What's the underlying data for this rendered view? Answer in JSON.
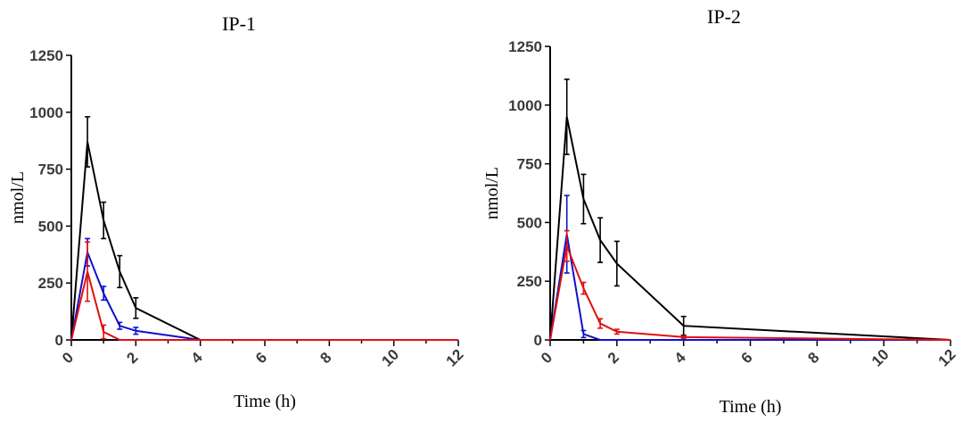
{
  "chart_data": [
    {
      "type": "line",
      "title": "IP-1",
      "xlabel": "Time (h)",
      "ylabel": "nmol/L",
      "xlim": [
        0,
        12
      ],
      "ylim": [
        0,
        1250
      ],
      "xticks": [
        0,
        2,
        4,
        6,
        8,
        10,
        12
      ],
      "yticks": [
        0,
        250,
        500,
        750,
        1000,
        1250
      ],
      "grid": false,
      "series": [
        {
          "color": "#000000",
          "x": [
            0,
            0.5,
            1,
            1.5,
            2,
            4,
            12
          ],
          "y": [
            0,
            870,
            525,
            300,
            140,
            0,
            0
          ],
          "err": [
            0,
            110,
            80,
            70,
            45,
            0,
            0
          ]
        },
        {
          "color": "#1010cc",
          "x": [
            0,
            0.5,
            1,
            1.5,
            2,
            4,
            12
          ],
          "y": [
            0,
            385,
            205,
            62,
            40,
            0,
            0
          ],
          "err": [
            0,
            60,
            30,
            15,
            15,
            0,
            0
          ]
        },
        {
          "color": "#e01010",
          "x": [
            0,
            0.5,
            1,
            1.5,
            2,
            4,
            12
          ],
          "y": [
            0,
            300,
            35,
            0,
            0,
            0,
            0
          ],
          "err": [
            0,
            130,
            30,
            0,
            0,
            0,
            0
          ]
        }
      ]
    },
    {
      "type": "line",
      "title": "IP-2",
      "xlabel": "Time (h)",
      "ylabel": "nmol/L",
      "xlim": [
        0,
        12
      ],
      "ylim": [
        0,
        1250
      ],
      "xticks": [
        0,
        2,
        4,
        6,
        8,
        10,
        12
      ],
      "yticks": [
        0,
        250,
        500,
        750,
        1000,
        1250
      ],
      "grid": false,
      "series": [
        {
          "color": "#000000",
          "x": [
            0,
            0.5,
            1,
            1.5,
            2,
            4,
            12
          ],
          "y": [
            0,
            950,
            600,
            425,
            325,
            60,
            0
          ],
          "err": [
            0,
            160,
            105,
            95,
            95,
            40,
            0
          ]
        },
        {
          "color": "#1010cc",
          "x": [
            0,
            0.5,
            1,
            1.5,
            2,
            4,
            12
          ],
          "y": [
            0,
            450,
            25,
            0,
            0,
            0,
            0
          ],
          "err": [
            0,
            165,
            15,
            0,
            0,
            0,
            0
          ]
        },
        {
          "color": "#e01010",
          "x": [
            0,
            0.5,
            1,
            1.5,
            2,
            4,
            12
          ],
          "y": [
            0,
            400,
            220,
            70,
            35,
            12,
            0
          ],
          "err": [
            0,
            65,
            25,
            20,
            10,
            5,
            0
          ]
        }
      ]
    }
  ]
}
